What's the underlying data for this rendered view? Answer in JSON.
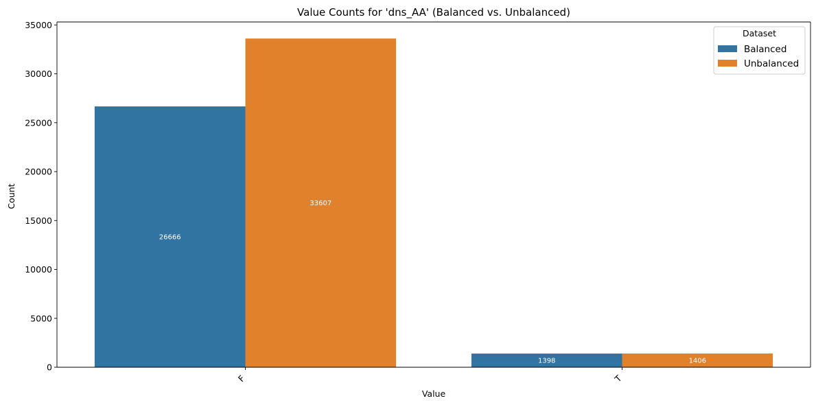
{
  "chart_data": {
    "type": "bar",
    "title": "Value Counts for 'dns_AA' (Balanced vs. Unbalanced)",
    "xlabel": "Value",
    "ylabel": "Count",
    "categories": [
      "F",
      "T"
    ],
    "series": [
      {
        "name": "Balanced",
        "values": [
          26666,
          1398
        ],
        "color": "#3274a1"
      },
      {
        "name": "Unbalanced",
        "values": [
          33607,
          1406
        ],
        "color": "#e1812c"
      }
    ],
    "data_labels": [
      [
        "26666",
        "1398"
      ],
      [
        "33607",
        "1406"
      ]
    ],
    "ylim": [
      0,
      35300
    ],
    "yticks": [
      0,
      5000,
      10000,
      15000,
      20000,
      25000,
      30000,
      35000
    ],
    "ytick_labels": [
      "0",
      "5000",
      "10000",
      "15000",
      "20000",
      "25000",
      "30000",
      "35000"
    ],
    "grid": false,
    "legend": {
      "title": "Dataset",
      "placement": "top-right"
    }
  }
}
